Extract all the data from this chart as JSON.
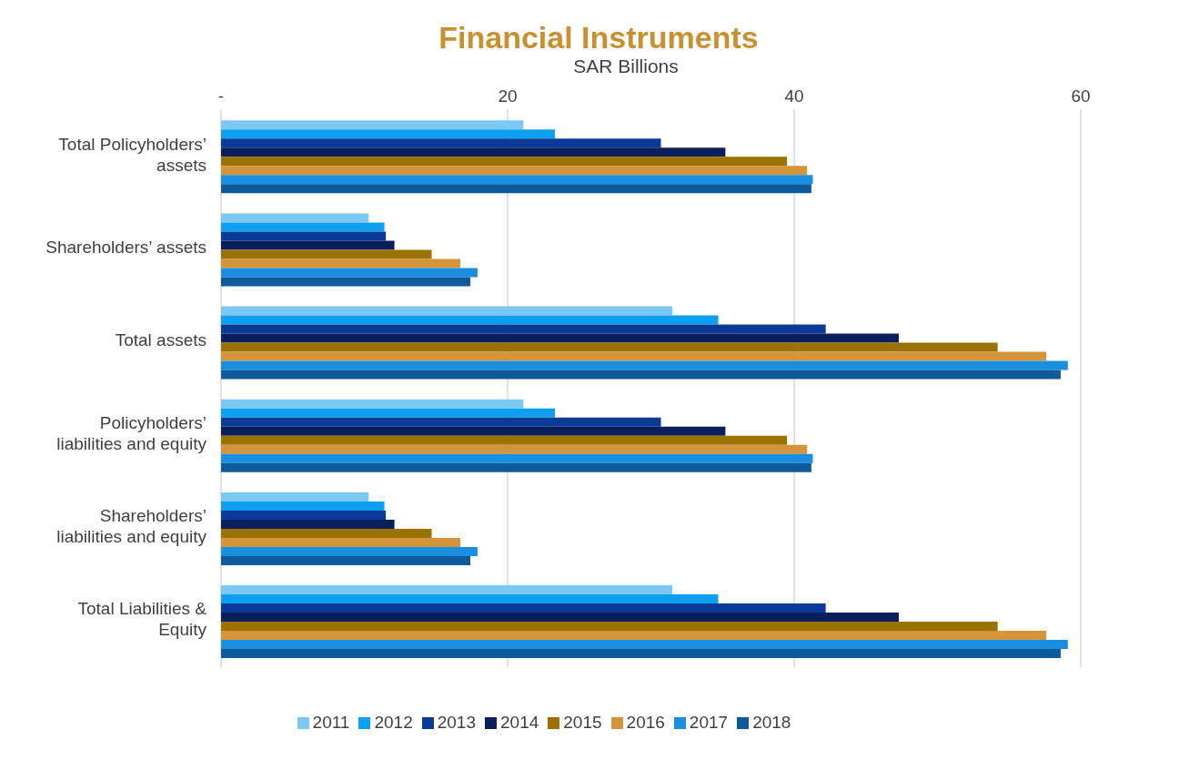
{
  "chart_data": {
    "type": "bar",
    "orientation": "horizontal",
    "title": "Financial Instruments",
    "xlabel": "SAR Billions",
    "categories": [
      "Total Policyholders’ assets",
      "Shareholders’ assets",
      "Total assets",
      "Policyholders’ liabilities and equity",
      "Shareholders’ liabilities and equity",
      "Total Liabilities & Equity"
    ],
    "series": [
      {
        "name": "2011",
        "color": "#7cc8f5",
        "values": [
          21.1,
          10.3,
          31.5,
          21.1,
          10.3,
          31.5
        ]
      },
      {
        "name": "2012",
        "color": "#0ea0f0",
        "values": [
          23.3,
          11.4,
          34.7,
          23.3,
          11.4,
          34.7
        ]
      },
      {
        "name": "2013",
        "color": "#0b3a99",
        "values": [
          30.7,
          11.5,
          42.2,
          30.7,
          11.5,
          42.2
        ]
      },
      {
        "name": "2014",
        "color": "#0a1f5c",
        "values": [
          35.2,
          12.1,
          47.3,
          35.2,
          12.1,
          47.3
        ]
      },
      {
        "name": "2015",
        "color": "#9a7200",
        "values": [
          39.5,
          14.7,
          54.2,
          39.5,
          14.7,
          54.2
        ]
      },
      {
        "name": "2016",
        "color": "#d4953a",
        "values": [
          40.9,
          16.7,
          57.6,
          40.9,
          16.7,
          57.6
        ]
      },
      {
        "name": "2017",
        "color": "#1a8fe0",
        "values": [
          41.3,
          17.9,
          59.1,
          41.3,
          17.9,
          59.1
        ]
      },
      {
        "name": "2018",
        "color": "#0f5a9a",
        "values": [
          41.2,
          17.4,
          58.6,
          41.2,
          17.4,
          58.6
        ]
      }
    ],
    "xlim": [
      0,
      60
    ],
    "xticks": [
      {
        "value": 0,
        "label": "-"
      },
      20,
      40,
      60
    ],
    "grid": "x",
    "legend": "bottom"
  }
}
